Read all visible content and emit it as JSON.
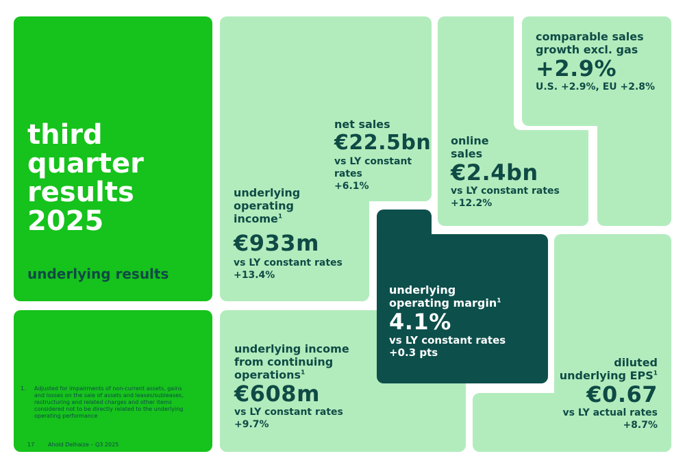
{
  "title": {
    "lines": [
      "third",
      "quarter",
      "results",
      "2025"
    ],
    "subtitle": "underlying results"
  },
  "footnote": {
    "marker": "1.",
    "text": "Adjusted for impairments of non-current assets, gains and losses on the sale of assets and leases/subleases, restructuring and related charges and other items considered not to be directly related to the underlying operating performance"
  },
  "footer": {
    "page_number": "17",
    "company_period": "Ahold Delhaize – Q3 2025"
  },
  "metrics": {
    "operating_income": {
      "label_lines": [
        "underlying",
        "operating",
        "income"
      ],
      "note_ref": "1",
      "value": "€933m",
      "comparison": "vs LY constant rates",
      "change": "+13.4%"
    },
    "net_sales": {
      "label": "net sales",
      "value": "€22.5bn",
      "comparison": "vs LY constant rates",
      "change": "+6.1%"
    },
    "online_sales": {
      "label_lines": [
        "online",
        "sales"
      ],
      "value": "€2.4bn",
      "comparison": "vs LY constant rates",
      "change": "+12.2%"
    },
    "comparable_sales": {
      "label_lines": [
        "comparable sales",
        "growth excl. gas"
      ],
      "value": "+2.9%",
      "detail": "U.S. +2.9%, EU +2.8%"
    },
    "operating_margin": {
      "label_lines": [
        "underlying",
        "operating margin"
      ],
      "note_ref": "1",
      "value": "4.1%",
      "comparison": "vs LY constant rates",
      "change": "+0.3 pts"
    },
    "income_continuing": {
      "label_lines": [
        "underlying income",
        "from continuing",
        "operations"
      ],
      "note_ref": "1",
      "value": "€608m",
      "comparison": "vs LY constant rates",
      "change": "+9.7%"
    },
    "diluted_eps": {
      "label_lines": [
        "diluted",
        "underlying EPS"
      ],
      "note_ref": "1",
      "value": "€0.67",
      "comparison": "vs LY actual rates",
      "change": "+8.7%"
    }
  },
  "colors": {
    "bright_green": "#16c21c",
    "pale_green": "#b2ecbd",
    "dark_teal": "#0d4f4b",
    "text_dark": "#0f4a45"
  }
}
